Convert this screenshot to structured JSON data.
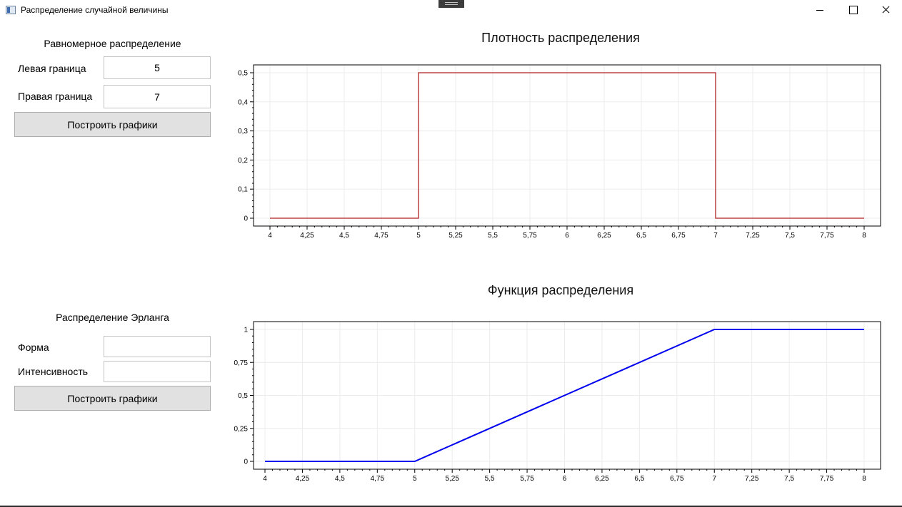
{
  "window": {
    "title": "Распределение случайной величины",
    "icon": "app-window-icon"
  },
  "uniform": {
    "title": "Равномерное распределение",
    "left_label": "Левая граница",
    "left_value": "5",
    "right_label": "Правая граница",
    "right_value": "7",
    "button_label": "Построить графики"
  },
  "erlang": {
    "title": "Распределение Эрланга",
    "shape_label": "Форма",
    "shape_value": "",
    "intensity_label": "Интенсивность",
    "intensity_value": "",
    "button_label": "Построить графики"
  },
  "chart_data": [
    {
      "type": "line",
      "title": "Плотность распределения",
      "xlim": [
        4,
        8
      ],
      "ylim": [
        0,
        0.5
      ],
      "x_ticks": [
        "4",
        "4,25",
        "4,5",
        "4,75",
        "5",
        "5,25",
        "5,5",
        "5,75",
        "6",
        "6,25",
        "6,5",
        "6,75",
        "7",
        "7,25",
        "7,5",
        "7,75",
        "8"
      ],
      "y_ticks": [
        "0",
        "0,1",
        "0,2",
        "0,3",
        "0,4",
        "0,5"
      ],
      "grid": true,
      "color": "#b22222",
      "series": [
        {
          "x": [
            4,
            5,
            5,
            7,
            7,
            8
          ],
          "y": [
            0,
            0,
            0.5,
            0.5,
            0,
            0
          ]
        }
      ]
    },
    {
      "type": "line",
      "title": "Функция распределения",
      "xlim": [
        4,
        8
      ],
      "ylim": [
        0,
        1
      ],
      "x_ticks": [
        "4",
        "4,25",
        "4,5",
        "4,75",
        "5",
        "5,25",
        "5,5",
        "5,75",
        "6",
        "6,25",
        "6,5",
        "6,75",
        "7",
        "7,25",
        "7,5",
        "7,75",
        "8"
      ],
      "y_ticks": [
        "0",
        "0,25",
        "0,5",
        "0,75",
        "1"
      ],
      "grid": true,
      "color": "#0000ee",
      "series": [
        {
          "x": [
            4,
            5,
            7,
            8
          ],
          "y": [
            0,
            0,
            1,
            1
          ]
        }
      ]
    }
  ]
}
